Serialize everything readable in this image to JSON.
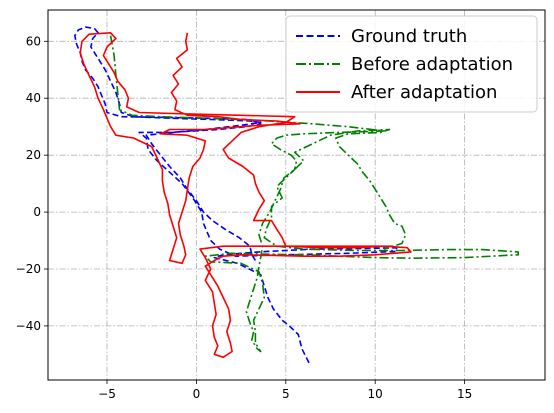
{
  "chart_data": {
    "type": "line",
    "title": "",
    "xlabel": "",
    "ylabel": "",
    "xlim": [
      -8.3,
      19.5
    ],
    "ylim": [
      -59,
      71
    ],
    "xticks": [
      -5,
      0,
      5,
      10,
      15
    ],
    "xtick_labels": [
      "−5",
      "0",
      "5",
      "10",
      "15"
    ],
    "yticks": [
      -40,
      -20,
      0,
      20,
      40,
      60
    ],
    "ytick_labels": [
      "−40",
      "−20",
      "0",
      "20",
      "40",
      "60"
    ],
    "grid": true,
    "legend_position": "top-right",
    "series": [
      {
        "name": "Ground truth",
        "color": "#0000ff",
        "dash": "dashed",
        "points": [
          [
            6.3,
            -53
          ],
          [
            5.9,
            -48
          ],
          [
            5.7,
            -43
          ],
          [
            5.2,
            -40
          ],
          [
            4.8,
            -38
          ],
          [
            4.3,
            -34
          ],
          [
            4.0,
            -30
          ],
          [
            3.8,
            -26
          ],
          [
            3.6,
            -22
          ],
          [
            2.3,
            -18
          ],
          [
            1.0,
            -16
          ],
          [
            1.5,
            -15
          ],
          [
            3.5,
            -14
          ],
          [
            6.5,
            -13
          ],
          [
            9.5,
            -12.8
          ],
          [
            11.2,
            -12.5
          ],
          [
            11.2,
            -13.8
          ],
          [
            8.5,
            -14.5
          ],
          [
            5,
            -15
          ],
          [
            2.2,
            -15.5
          ],
          [
            1.3,
            -13
          ],
          [
            0.8,
            -10
          ],
          [
            0.4,
            -4
          ],
          [
            0.3,
            0
          ],
          [
            -0.2,
            5
          ],
          [
            -0.8,
            10
          ],
          [
            -1.5,
            14
          ],
          [
            -2.2,
            18
          ],
          [
            -2.7,
            22
          ],
          [
            -2.8,
            26
          ],
          [
            -3.2,
            28
          ],
          [
            -1.4,
            28
          ],
          [
            1.2,
            29
          ],
          [
            2.8,
            30
          ],
          [
            3.6,
            31
          ],
          [
            3,
            32.5
          ],
          [
            0.5,
            33
          ],
          [
            -2,
            33.3
          ],
          [
            -4.2,
            33.5
          ],
          [
            -5,
            35
          ],
          [
            -5.1,
            38
          ],
          [
            -5.3,
            41
          ],
          [
            -5.5,
            44
          ],
          [
            -5.8,
            47
          ],
          [
            -6.2,
            50
          ],
          [
            -6.4,
            53
          ],
          [
            -6.5,
            56
          ],
          [
            -6.7,
            59
          ],
          [
            -6.8,
            62
          ],
          [
            -6.6,
            64
          ],
          [
            -6.2,
            65
          ],
          [
            -5.7,
            64.5
          ],
          [
            -5.5,
            63
          ],
          [
            -5.8,
            61
          ],
          [
            -5.9,
            58
          ],
          [
            -5.5,
            54
          ],
          [
            -5.1,
            50
          ],
          [
            -4.8,
            46
          ],
          [
            -4.5,
            42
          ],
          [
            -4.3,
            38
          ],
          [
            -4.2,
            35
          ],
          [
            -3.5,
            33.5
          ],
          [
            -1.5,
            33
          ],
          [
            1,
            32.5
          ],
          [
            3,
            32
          ],
          [
            3.6,
            31.5
          ],
          [
            2.5,
            30.5
          ],
          [
            0.5,
            29
          ],
          [
            -1.3,
            28
          ],
          [
            -2.8,
            27
          ],
          [
            -2.5,
            24
          ],
          [
            -2,
            20
          ],
          [
            -1.5,
            16
          ],
          [
            -0.9,
            12
          ],
          [
            -0.5,
            8
          ],
          [
            0,
            4
          ],
          [
            0.4,
            0
          ],
          [
            0.9,
            -3
          ],
          [
            1.6,
            -6
          ],
          [
            2.4,
            -9
          ],
          [
            3.0,
            -12
          ],
          [
            3.1,
            -15
          ],
          [
            3.3,
            -17
          ]
        ]
      },
      {
        "name": "Before adaptation",
        "color": "#008000",
        "dash": "dashdot",
        "points": [
          [
            -4.8,
            62
          ],
          [
            -4.6,
            55
          ],
          [
            -4.5,
            48
          ],
          [
            -4.4,
            42
          ],
          [
            -4.3,
            36
          ],
          [
            -3.6,
            34
          ],
          [
            -2,
            33.5
          ],
          [
            0.5,
            33
          ],
          [
            2.5,
            32.5
          ],
          [
            4,
            32
          ],
          [
            6.5,
            31
          ],
          [
            8.5,
            30
          ],
          [
            10.5,
            28.5
          ],
          [
            8,
            28
          ],
          [
            6,
            27.5
          ],
          [
            5,
            27
          ],
          [
            4.5,
            26
          ],
          [
            4.2,
            24
          ],
          [
            4.7,
            22
          ],
          [
            5.3,
            20
          ],
          [
            5.6,
            18
          ],
          [
            5.5,
            15
          ],
          [
            5,
            12
          ],
          [
            4.5,
            9
          ],
          [
            4.8,
            5
          ],
          [
            4.2,
            2
          ],
          [
            4.2,
            -2
          ],
          [
            3.9,
            -6
          ],
          [
            3.8,
            -9
          ],
          [
            4.5,
            -12
          ],
          [
            6,
            -13
          ],
          [
            9,
            -13.5
          ],
          [
            11.5,
            -13.5
          ],
          [
            14,
            -13.2
          ],
          [
            16,
            -13.2
          ],
          [
            18,
            -14
          ],
          [
            18,
            -15
          ],
          [
            15,
            -16
          ],
          [
            12,
            -16.2
          ],
          [
            10,
            -16
          ],
          [
            8,
            -15.5
          ],
          [
            6,
            -15
          ],
          [
            4,
            -14.8
          ],
          [
            2,
            -14.5
          ],
          [
            0.5,
            -15.5
          ],
          [
            0.8,
            -17.5
          ],
          [
            2.5,
            -18
          ],
          [
            3.5,
            -21
          ],
          [
            3.7,
            -25
          ],
          [
            3.8,
            -30
          ],
          [
            3.5,
            -34
          ],
          [
            3.2,
            -38
          ],
          [
            3.3,
            -42
          ],
          [
            3.3,
            -46
          ],
          [
            3.6,
            -49
          ],
          [
            3.4,
            -48
          ],
          [
            3.1,
            -45
          ],
          [
            3.2,
            -42
          ],
          [
            3.0,
            -39
          ],
          [
            2.8,
            -35
          ],
          [
            3.0,
            -31
          ],
          [
            3.2,
            -27
          ],
          [
            3.4,
            -23
          ],
          [
            3.5,
            -19
          ],
          [
            3.6,
            -16
          ],
          [
            3.7,
            -12
          ],
          [
            3.5,
            -8
          ],
          [
            3.7,
            -4
          ],
          [
            4.1,
            0
          ],
          [
            4.4,
            4
          ],
          [
            4.7,
            8
          ],
          [
            4.9,
            12
          ],
          [
            5.5,
            15
          ],
          [
            6,
            18
          ],
          [
            5.5,
            21
          ],
          [
            6.5,
            24
          ],
          [
            7.5,
            27
          ],
          [
            9,
            28.5
          ],
          [
            10.8,
            29
          ],
          [
            10.3,
            28
          ],
          [
            8.5,
            27.5
          ],
          [
            7.8,
            26
          ],
          [
            8,
            23
          ],
          [
            8.5,
            20
          ],
          [
            9,
            17
          ],
          [
            9.3,
            14
          ],
          [
            9.7,
            11
          ],
          [
            10,
            8
          ],
          [
            10.3,
            5
          ],
          [
            10.6,
            2
          ],
          [
            10.8,
            -1
          ],
          [
            11.1,
            -4
          ],
          [
            11.5,
            -5
          ],
          [
            11.7,
            -8
          ],
          [
            11.5,
            -11
          ],
          [
            10.5,
            -13
          ]
        ]
      },
      {
        "name": "After adaptation",
        "color": "#ff0000",
        "dash": "solid",
        "points": [
          [
            -0.5,
            63
          ],
          [
            -0.6,
            60
          ],
          [
            -0.5,
            57
          ],
          [
            -1.1,
            54
          ],
          [
            -0.8,
            51
          ],
          [
            -1.3,
            48
          ],
          [
            -1.0,
            45
          ],
          [
            -1.4,
            42
          ],
          [
            -1.1,
            39
          ],
          [
            -1.2,
            36
          ],
          [
            -0.5,
            34
          ],
          [
            1.2,
            33.5
          ],
          [
            2.5,
            32.5
          ],
          [
            4.5,
            32
          ],
          [
            5.8,
            31
          ],
          [
            3.5,
            30.5
          ],
          [
            0.5,
            29
          ],
          [
            -1.5,
            29
          ],
          [
            -2,
            27.5
          ],
          [
            -0.5,
            27
          ],
          [
            0.5,
            25
          ],
          [
            0.4,
            22
          ],
          [
            0.2,
            19
          ],
          [
            -0.2,
            16
          ],
          [
            -0.4,
            12
          ],
          [
            -0.5,
            8
          ],
          [
            -0.6,
            4
          ],
          [
            -0.8,
            0
          ],
          [
            -1.0,
            -4
          ],
          [
            -0.9,
            -8
          ],
          [
            -0.7,
            -12
          ],
          [
            -0.6,
            -15
          ],
          [
            -0.8,
            -18
          ],
          [
            -1.5,
            -17
          ],
          [
            -1.3,
            -13
          ],
          [
            -1.1,
            -9
          ],
          [
            -1.3,
            -5
          ],
          [
            -1.5,
            -1
          ],
          [
            -1.6,
            3
          ],
          [
            -1.8,
            7
          ],
          [
            -1.9,
            11
          ],
          [
            -1.9,
            15
          ],
          [
            -2.2,
            19
          ],
          [
            -2.5,
            23
          ],
          [
            -3.5,
            26
          ],
          [
            -4.5,
            27
          ],
          [
            -4.8,
            30
          ],
          [
            -5,
            33
          ],
          [
            -5.2,
            36
          ],
          [
            -5.5,
            40
          ],
          [
            -5.7,
            44
          ],
          [
            -6,
            48
          ],
          [
            -6.3,
            52
          ],
          [
            -6.5,
            56
          ],
          [
            -6.4,
            60
          ],
          [
            -6,
            62.5
          ],
          [
            -4.8,
            63
          ],
          [
            -4.5,
            61
          ],
          [
            -5,
            58
          ],
          [
            -5.2,
            55
          ],
          [
            -4.9,
            52
          ],
          [
            -4.6,
            49
          ],
          [
            -4.4,
            46
          ],
          [
            -4.0,
            43
          ],
          [
            -3.8,
            40
          ],
          [
            -3.9,
            37
          ],
          [
            -3.2,
            35
          ],
          [
            -0.5,
            34.5
          ],
          [
            2.5,
            34
          ],
          [
            5.5,
            33.5
          ],
          [
            5,
            31.5
          ],
          [
            3.5,
            30
          ],
          [
            2.5,
            28
          ],
          [
            2,
            25
          ],
          [
            1.5,
            22
          ],
          [
            1.8,
            19
          ],
          [
            2.6,
            16
          ],
          [
            3.2,
            13
          ],
          [
            3.3,
            10
          ],
          [
            3.5,
            7
          ],
          [
            3.8,
            4
          ],
          [
            3.5,
            1
          ],
          [
            3.2,
            -3
          ],
          [
            4.2,
            -3
          ],
          [
            4.5,
            -6
          ],
          [
            4.8,
            -9
          ],
          [
            5,
            -12
          ],
          [
            7,
            -12.5
          ],
          [
            9,
            -12.5
          ],
          [
            10.5,
            -12
          ],
          [
            11.8,
            -12.5
          ],
          [
            12,
            -14
          ],
          [
            10,
            -15
          ],
          [
            8,
            -15.5
          ],
          [
            6,
            -15.5
          ],
          [
            4,
            -15.2
          ],
          [
            2.5,
            -15
          ],
          [
            1.5,
            -15.5
          ],
          [
            1,
            -17
          ],
          [
            0.5,
            -19
          ],
          [
            0.8,
            -22
          ],
          [
            1.2,
            -26
          ],
          [
            1.5,
            -30
          ],
          [
            1.8,
            -34
          ],
          [
            1.9,
            -38
          ],
          [
            1.7,
            -42
          ],
          [
            1.9,
            -46
          ],
          [
            2.0,
            -49
          ],
          [
            1.5,
            -51
          ],
          [
            1.0,
            -50
          ],
          [
            1.2,
            -47
          ],
          [
            1.0,
            -44
          ],
          [
            0.9,
            -40
          ],
          [
            1.1,
            -36
          ],
          [
            1.0,
            -32
          ],
          [
            0.9,
            -28
          ],
          [
            0.5,
            -24
          ],
          [
            0.8,
            -20
          ],
          [
            0.5,
            -16
          ],
          [
            0.2,
            -13
          ],
          [
            1.5,
            -12
          ],
          [
            3.5,
            -12
          ],
          [
            6,
            -12
          ],
          [
            8.5,
            -12
          ],
          [
            11,
            -12
          ]
        ]
      }
    ]
  }
}
